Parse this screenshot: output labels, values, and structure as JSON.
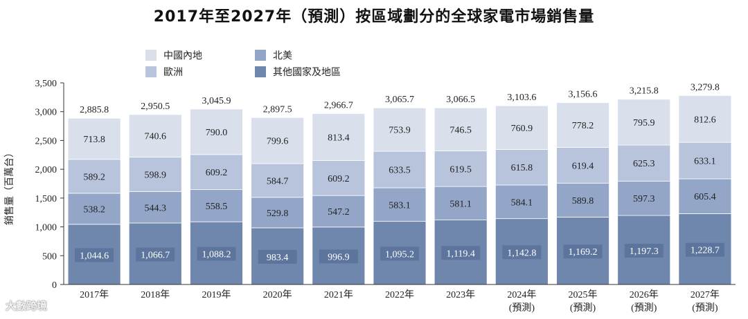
{
  "chart_data": {
    "type": "bar",
    "stacked": true,
    "title": "2017年至2027年（預測）按區域劃分的全球家電市場銷售量",
    "ylabel": "銷售量（百萬台）",
    "xlabel": "",
    "ylim": [
      0,
      3500
    ],
    "yticks": [
      0,
      500,
      1000,
      1500,
      2000,
      2500,
      3000,
      3500
    ],
    "ytick_labels": [
      "0",
      "500",
      "1,000",
      "1,500",
      "2,000",
      "2,500",
      "3,000",
      "3,500"
    ],
    "categories": [
      "2017年",
      "2018年",
      "2019年",
      "2020年",
      "2021年",
      "2022年",
      "2023年",
      "2024年",
      "2025年",
      "2026年",
      "2027年"
    ],
    "category_sublabels": [
      "",
      "",
      "",
      "",
      "",
      "",
      "",
      "(預測)",
      "(預測)",
      "(預測)",
      "(預測)"
    ],
    "series": [
      {
        "name": "其他國家及地區",
        "color": "#6f86ad",
        "values": [
          1044.6,
          1066.7,
          1088.2,
          983.4,
          996.9,
          1095.2,
          1119.4,
          1142.8,
          1169.2,
          1197.3,
          1228.7
        ],
        "labels": [
          "1,044.6",
          "1,066.7",
          "1,088.2",
          "983.4",
          "996.9",
          "1,095.2",
          "1,119.4",
          "1,142.8",
          "1,169.2",
          "1,197.3",
          "1,228.7"
        ]
      },
      {
        "name": "北美",
        "color": "#93a6c7",
        "values": [
          538.2,
          544.3,
          558.5,
          529.8,
          547.2,
          583.1,
          581.1,
          584.1,
          589.8,
          597.3,
          605.4
        ],
        "labels": [
          "538.2",
          "544.3",
          "558.5",
          "529.8",
          "547.2",
          "583.1",
          "581.1",
          "584.1",
          "589.8",
          "597.3",
          "605.4"
        ]
      },
      {
        "name": "歐洲",
        "color": "#b7c4dc",
        "values": [
          589.2,
          598.9,
          609.2,
          584.7,
          609.2,
          633.5,
          619.5,
          615.8,
          619.4,
          625.3,
          633.1
        ],
        "labels": [
          "589.2",
          "598.9",
          "609.2",
          "584.7",
          "609.2",
          "633.5",
          "619.5",
          "615.8",
          "619.4",
          "625.3",
          "633.1"
        ]
      },
      {
        "name": "中國內地",
        "color": "#d9e0ec",
        "values": [
          713.8,
          740.6,
          790.0,
          799.6,
          813.4,
          753.9,
          746.5,
          760.9,
          778.2,
          795.9,
          812.6
        ],
        "labels": [
          "713.8",
          "740.6",
          "790.0",
          "799.6",
          "813.4",
          "753.9",
          "746.5",
          "760.9",
          "778.2",
          "795.9",
          "812.6"
        ]
      }
    ],
    "totals": [
      2885.8,
      2950.5,
      3045.9,
      2897.5,
      2966.7,
      3065.7,
      3066.5,
      3103.6,
      3156.6,
      3215.8,
      3279.8
    ],
    "total_labels": [
      "2,885.8",
      "2,950.5",
      "3,045.9",
      "2,897.5",
      "2,966.7",
      "3,065.7",
      "3,066.5",
      "3,103.6",
      "3,156.6",
      "3,215.8",
      "3,279.8"
    ],
    "legend_order": [
      "中國內地",
      "北美",
      "歐洲",
      "其他國家及地區"
    ],
    "legend_position": "top-left"
  },
  "watermark": "大數跨境"
}
